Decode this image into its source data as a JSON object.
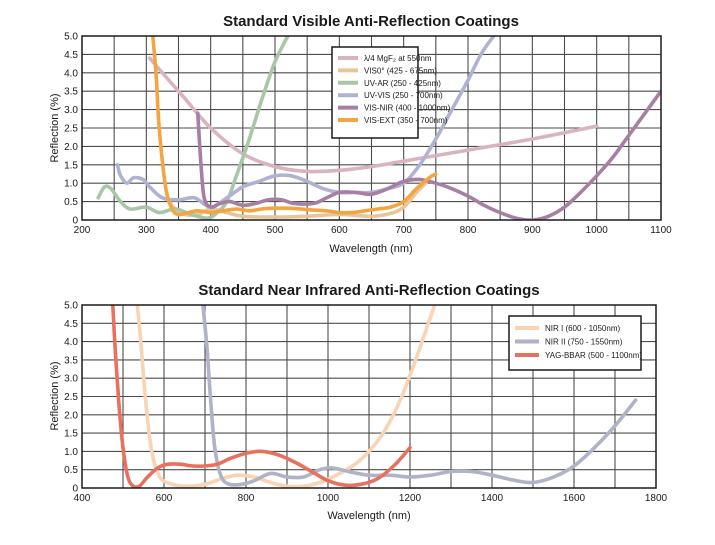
{
  "chart_data": [
    {
      "type": "line",
      "title": "Standard Visible Anti-Reflection Coatings",
      "xlabel": "Wavelength (nm)",
      "ylabel": "Reflection (%)",
      "xlim": [
        200,
        1100
      ],
      "ylim": [
        0,
        5.0
      ],
      "xticks": [
        "200",
        "300",
        "400",
        "500",
        "600",
        "700",
        "800",
        "900",
        "1000",
        "1100"
      ],
      "yticks": [
        "0",
        "0.5",
        "1.0",
        "1.5",
        "2.0",
        "2.5",
        "3.0",
        "3.5",
        "4.0",
        "4.5",
        "5.0"
      ],
      "xgrid_step": 50,
      "ygrid_step": 0.5,
      "series": [
        {
          "name": "λ/4 MgF₂ at 550nm",
          "color": "#d9b3c0",
          "points": [
            [
              305,
              4.4
            ],
            [
              330,
              3.9
            ],
            [
              360,
              3.3
            ],
            [
              400,
              2.5
            ],
            [
              450,
              1.8
            ],
            [
              500,
              1.45
            ],
            [
              550,
              1.32
            ],
            [
              600,
              1.35
            ],
            [
              650,
              1.45
            ],
            [
              700,
              1.6
            ],
            [
              800,
              1.9
            ],
            [
              900,
              2.2
            ],
            [
              1000,
              2.55
            ]
          ]
        },
        {
          "name": "VIS0° (425 - 675nm)",
          "color": "#e8c69a",
          "points": [
            [
              335,
              0.5
            ],
            [
              345,
              0.3
            ],
            [
              360,
              0.15
            ],
            [
              380,
              0.15
            ],
            [
              400,
              0.3
            ],
            [
              425,
              0.2
            ],
            [
              450,
              0.1
            ],
            [
              500,
              0.08
            ],
            [
              550,
              0.1
            ],
            [
              600,
              0.15
            ],
            [
              650,
              0.1
            ],
            [
              680,
              0.18
            ],
            [
              700,
              0.35
            ],
            [
              720,
              0.75
            ],
            [
              740,
              1.1
            ]
          ]
        },
        {
          "name": "UV-AR (250 - 425nm)",
          "color": "#a9c7a7",
          "points": [
            [
              225,
              0.6
            ],
            [
              235,
              0.9
            ],
            [
              245,
              0.85
            ],
            [
              260,
              0.5
            ],
            [
              275,
              0.3
            ],
            [
              300,
              0.35
            ],
            [
              320,
              0.2
            ],
            [
              345,
              0.3
            ],
            [
              370,
              0.15
            ],
            [
              395,
              0.05
            ],
            [
              410,
              0.2
            ],
            [
              425,
              0.5
            ],
            [
              440,
              1.2
            ],
            [
              460,
              2.2
            ],
            [
              480,
              3.3
            ],
            [
              500,
              4.3
            ],
            [
              520,
              5.0
            ]
          ]
        },
        {
          "name": "UV-VIS (250 - 700nm)",
          "color": "#b0b2d4",
          "points": [
            [
              255,
              1.5
            ],
            [
              260,
              1.2
            ],
            [
              270,
              1.0
            ],
            [
              280,
              1.15
            ],
            [
              295,
              1.1
            ],
            [
              305,
              0.9
            ],
            [
              325,
              0.6
            ],
            [
              350,
              0.55
            ],
            [
              375,
              0.6
            ],
            [
              400,
              0.35
            ],
            [
              425,
              0.6
            ],
            [
              450,
              0.9
            ],
            [
              475,
              1.05
            ],
            [
              500,
              1.2
            ],
            [
              525,
              1.2
            ],
            [
              550,
              1.05
            ],
            [
              575,
              0.85
            ],
            [
              600,
              0.75
            ],
            [
              625,
              0.75
            ],
            [
              650,
              0.75
            ],
            [
              675,
              0.85
            ],
            [
              700,
              1.0
            ],
            [
              725,
              1.5
            ],
            [
              750,
              2.2
            ],
            [
              775,
              3.0
            ],
            [
              800,
              3.8
            ],
            [
              820,
              4.5
            ],
            [
              840,
              5.0
            ]
          ]
        },
        {
          "name": "VIS-NIR (400 - 1000nm)",
          "color": "#a67fa2",
          "points": [
            [
              380,
              2.9
            ],
            [
              385,
              1.5
            ],
            [
              390,
              0.6
            ],
            [
              400,
              0.35
            ],
            [
              415,
              0.45
            ],
            [
              430,
              0.5
            ],
            [
              450,
              0.4
            ],
            [
              470,
              0.45
            ],
            [
              490,
              0.55
            ],
            [
              510,
              0.55
            ],
            [
              530,
              0.45
            ],
            [
              560,
              0.45
            ],
            [
              580,
              0.6
            ],
            [
              600,
              0.75
            ],
            [
              625,
              0.75
            ],
            [
              650,
              0.7
            ],
            [
              675,
              0.85
            ],
            [
              700,
              1.05
            ],
            [
              725,
              1.1
            ],
            [
              750,
              1.0
            ],
            [
              775,
              0.85
            ],
            [
              800,
              0.65
            ],
            [
              825,
              0.4
            ],
            [
              850,
              0.2
            ],
            [
              875,
              0.05
            ],
            [
              900,
              0.0
            ],
            [
              925,
              0.1
            ],
            [
              950,
              0.35
            ],
            [
              975,
              0.75
            ],
            [
              1000,
              1.2
            ],
            [
              1025,
              1.7
            ],
            [
              1050,
              2.3
            ],
            [
              1075,
              2.9
            ],
            [
              1100,
              3.5
            ]
          ]
        },
        {
          "name": "VIS-EXT (350 - 700nm)",
          "color": "#f2a540",
          "points": [
            [
              310,
              5.0
            ],
            [
              315,
              4.0
            ],
            [
              320,
              2.5
            ],
            [
              330,
              0.9
            ],
            [
              340,
              0.3
            ],
            [
              350,
              0.15
            ],
            [
              365,
              0.2
            ],
            [
              380,
              0.25
            ],
            [
              400,
              0.2
            ],
            [
              420,
              0.25
            ],
            [
              440,
              0.3
            ],
            [
              460,
              0.25
            ],
            [
              480,
              0.3
            ],
            [
              500,
              0.32
            ],
            [
              520,
              0.32
            ],
            [
              540,
              0.3
            ],
            [
              560,
              0.27
            ],
            [
              580,
              0.25
            ],
            [
              600,
              0.2
            ],
            [
              620,
              0.2
            ],
            [
              640,
              0.25
            ],
            [
              660,
              0.3
            ],
            [
              680,
              0.35
            ],
            [
              700,
              0.5
            ],
            [
              720,
              0.85
            ],
            [
              740,
              1.15
            ],
            [
              750,
              1.25
            ]
          ]
        }
      ],
      "legend_position": "top-center"
    },
    {
      "type": "line",
      "title": "Standard Near Infrared Anti-Reflection Coatings",
      "xlabel": "Wavelength (nm)",
      "ylabel": "Reflection (%)",
      "xlim": [
        400,
        1800
      ],
      "ylim": [
        0,
        5.0
      ],
      "xticks": [
        "400",
        "600",
        "800",
        "1000",
        "1200",
        "1400",
        "1600",
        "1800"
      ],
      "yticks": [
        "0",
        "0.5",
        "1.0",
        "1.5",
        "2.0",
        "2.5",
        "3.0",
        "3.5",
        "4.0",
        "4.5",
        "5.0"
      ],
      "xgrid_step": 100,
      "ygrid_step": 0.5,
      "series": [
        {
          "name": "NIR I (600 - 1050nm)",
          "color": "#f8d4b4",
          "points": [
            [
              535,
              5.0
            ],
            [
              545,
              3.8
            ],
            [
              555,
              2.4
            ],
            [
              570,
              1.0
            ],
            [
              590,
              0.3
            ],
            [
              620,
              0.1
            ],
            [
              660,
              0.05
            ],
            [
              700,
              0.1
            ],
            [
              740,
              0.25
            ],
            [
              780,
              0.35
            ],
            [
              820,
              0.3
            ],
            [
              860,
              0.15
            ],
            [
              900,
              0.05
            ],
            [
              940,
              0.05
            ],
            [
              980,
              0.15
            ],
            [
              1020,
              0.35
            ],
            [
              1060,
              0.6
            ],
            [
              1100,
              1.0
            ],
            [
              1140,
              1.6
            ],
            [
              1180,
              2.5
            ],
            [
              1220,
              3.7
            ],
            [
              1260,
              5.0
            ]
          ]
        },
        {
          "name": "NIR II (750 - 1550nm)",
          "color": "#b0b2c8",
          "points": [
            [
              695,
              5.0
            ],
            [
              705,
              3.8
            ],
            [
              715,
              2.2
            ],
            [
              725,
              1.0
            ],
            [
              740,
              0.3
            ],
            [
              760,
              0.1
            ],
            [
              790,
              0.1
            ],
            [
              820,
              0.2
            ],
            [
              860,
              0.4
            ],
            [
              900,
              0.3
            ],
            [
              940,
              0.3
            ],
            [
              980,
              0.5
            ],
            [
              1010,
              0.55
            ],
            [
              1050,
              0.45
            ],
            [
              1100,
              0.35
            ],
            [
              1150,
              0.35
            ],
            [
              1200,
              0.3
            ],
            [
              1250,
              0.35
            ],
            [
              1300,
              0.45
            ],
            [
              1350,
              0.45
            ],
            [
              1400,
              0.35
            ],
            [
              1450,
              0.22
            ],
            [
              1500,
              0.15
            ],
            [
              1550,
              0.3
            ],
            [
              1600,
              0.6
            ],
            [
              1650,
              1.1
            ],
            [
              1700,
              1.7
            ],
            [
              1750,
              2.4
            ]
          ]
        },
        {
          "name": "YAG-BBAR (500 - 1100nm)",
          "color": "#e8705e",
          "points": [
            [
              475,
              5.0
            ],
            [
              482,
              3.6
            ],
            [
              490,
              2.3
            ],
            [
              500,
              1.1
            ],
            [
              512,
              0.3
            ],
            [
              525,
              0.05
            ],
            [
              540,
              0.05
            ],
            [
              560,
              0.3
            ],
            [
              585,
              0.55
            ],
            [
              610,
              0.65
            ],
            [
              640,
              0.65
            ],
            [
              670,
              0.6
            ],
            [
              700,
              0.6
            ],
            [
              730,
              0.65
            ],
            [
              760,
              0.8
            ],
            [
              800,
              0.95
            ],
            [
              840,
              1.0
            ],
            [
              880,
              0.9
            ],
            [
              920,
              0.7
            ],
            [
              960,
              0.45
            ],
            [
              1000,
              0.2
            ],
            [
              1040,
              0.08
            ],
            [
              1080,
              0.1
            ],
            [
              1120,
              0.25
            ],
            [
              1160,
              0.6
            ],
            [
              1200,
              1.1
            ]
          ]
        }
      ],
      "legend_position": "top-right"
    }
  ]
}
